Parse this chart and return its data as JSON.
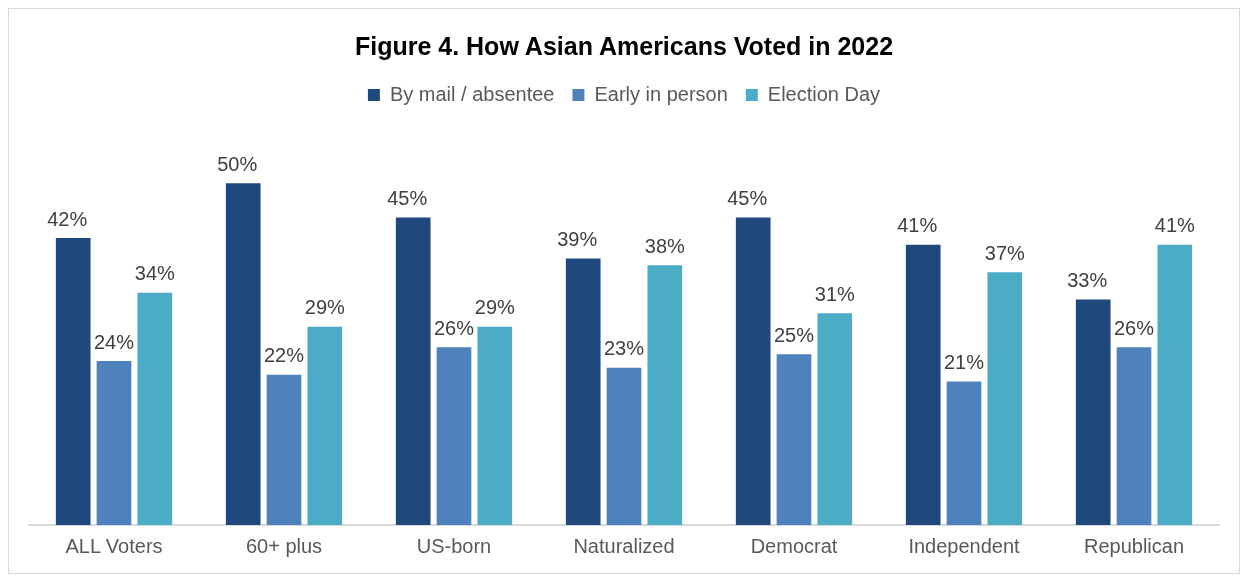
{
  "chart_data": {
    "type": "bar",
    "title": "Figure 4. How Asian Americans Voted in 2022",
    "categories": [
      "ALL Voters",
      "60+ plus",
      "US-born",
      "Naturalized",
      "Democrat",
      "Independent",
      "Republican"
    ],
    "series": [
      {
        "name": "By mail / absentee",
        "color": "#1f497d",
        "values": [
          42,
          50,
          45,
          39,
          45,
          41,
          33
        ],
        "value_labels": [
          "42%",
          "50%",
          "45%",
          "39%",
          "45%",
          "41%",
          "33%"
        ]
      },
      {
        "name": "Early in person",
        "color": "#4f81bd",
        "values": [
          24,
          22,
          26,
          23,
          25,
          21,
          26
        ],
        "value_labels": [
          "24%",
          "22%",
          "26%",
          "23%",
          "25%",
          "21%",
          "26%"
        ]
      },
      {
        "name": "Election Day",
        "color": "#4bacc6",
        "values": [
          34,
          29,
          29,
          38,
          31,
          37,
          41
        ],
        "value_labels": [
          "34%",
          "29%",
          "29%",
          "38%",
          "31%",
          "37%",
          "41%"
        ]
      }
    ],
    "legend": "top",
    "grid": false
  }
}
